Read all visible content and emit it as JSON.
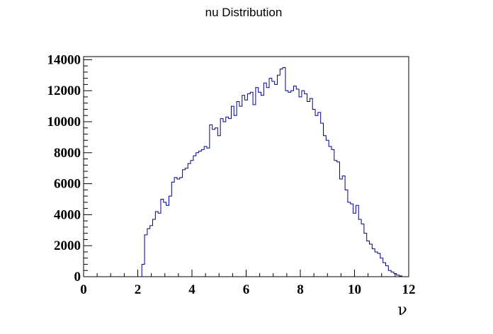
{
  "chart_data": {
    "type": "histogram",
    "title": "nu Distribution",
    "xlabel": "ν",
    "ylabel": "",
    "xlim": [
      0,
      12
    ],
    "ylim": [
      0,
      14200
    ],
    "x_ticks": [
      "0",
      "2",
      "4",
      "6",
      "8",
      "10",
      "12"
    ],
    "y_ticks": [
      "0",
      "2000",
      "4000",
      "6000",
      "8000",
      "10000",
      "12000",
      "14000"
    ],
    "grid": false,
    "legend": "none",
    "line_color": "#00008b",
    "series": [
      {
        "bin_start": 2.15,
        "bin_width": 0.1,
        "values": [
          800,
          2700,
          3100,
          3300,
          3700,
          4200,
          4100,
          5000,
          4800,
          4600,
          5200,
          6100,
          6400,
          6300,
          6400,
          6900,
          7000,
          7300,
          7500,
          7800,
          8000,
          8100,
          8200,
          8400,
          8300,
          9800,
          9500,
          9600,
          9100,
          10200,
          10000,
          10300,
          10200,
          11000,
          10400,
          11300,
          11000,
          11700,
          11400,
          11800,
          11900,
          11100,
          12200,
          11900,
          11700,
          12500,
          12200,
          12800,
          12600,
          12400,
          13000,
          13400,
          13500,
          12000,
          11900,
          12000,
          12300,
          12100,
          11600,
          12000,
          11800,
          11300,
          11500,
          10800,
          10400,
          10600,
          9900,
          9100,
          8800,
          8400,
          8200,
          7500,
          7400,
          6300,
          6500,
          5600,
          4800,
          4700,
          4100,
          4600,
          3700,
          3400,
          2800,
          2300,
          2100,
          1800,
          1600,
          1500,
          1200,
          900,
          700,
          400,
          300,
          200,
          100,
          50
        ]
      }
    ]
  }
}
